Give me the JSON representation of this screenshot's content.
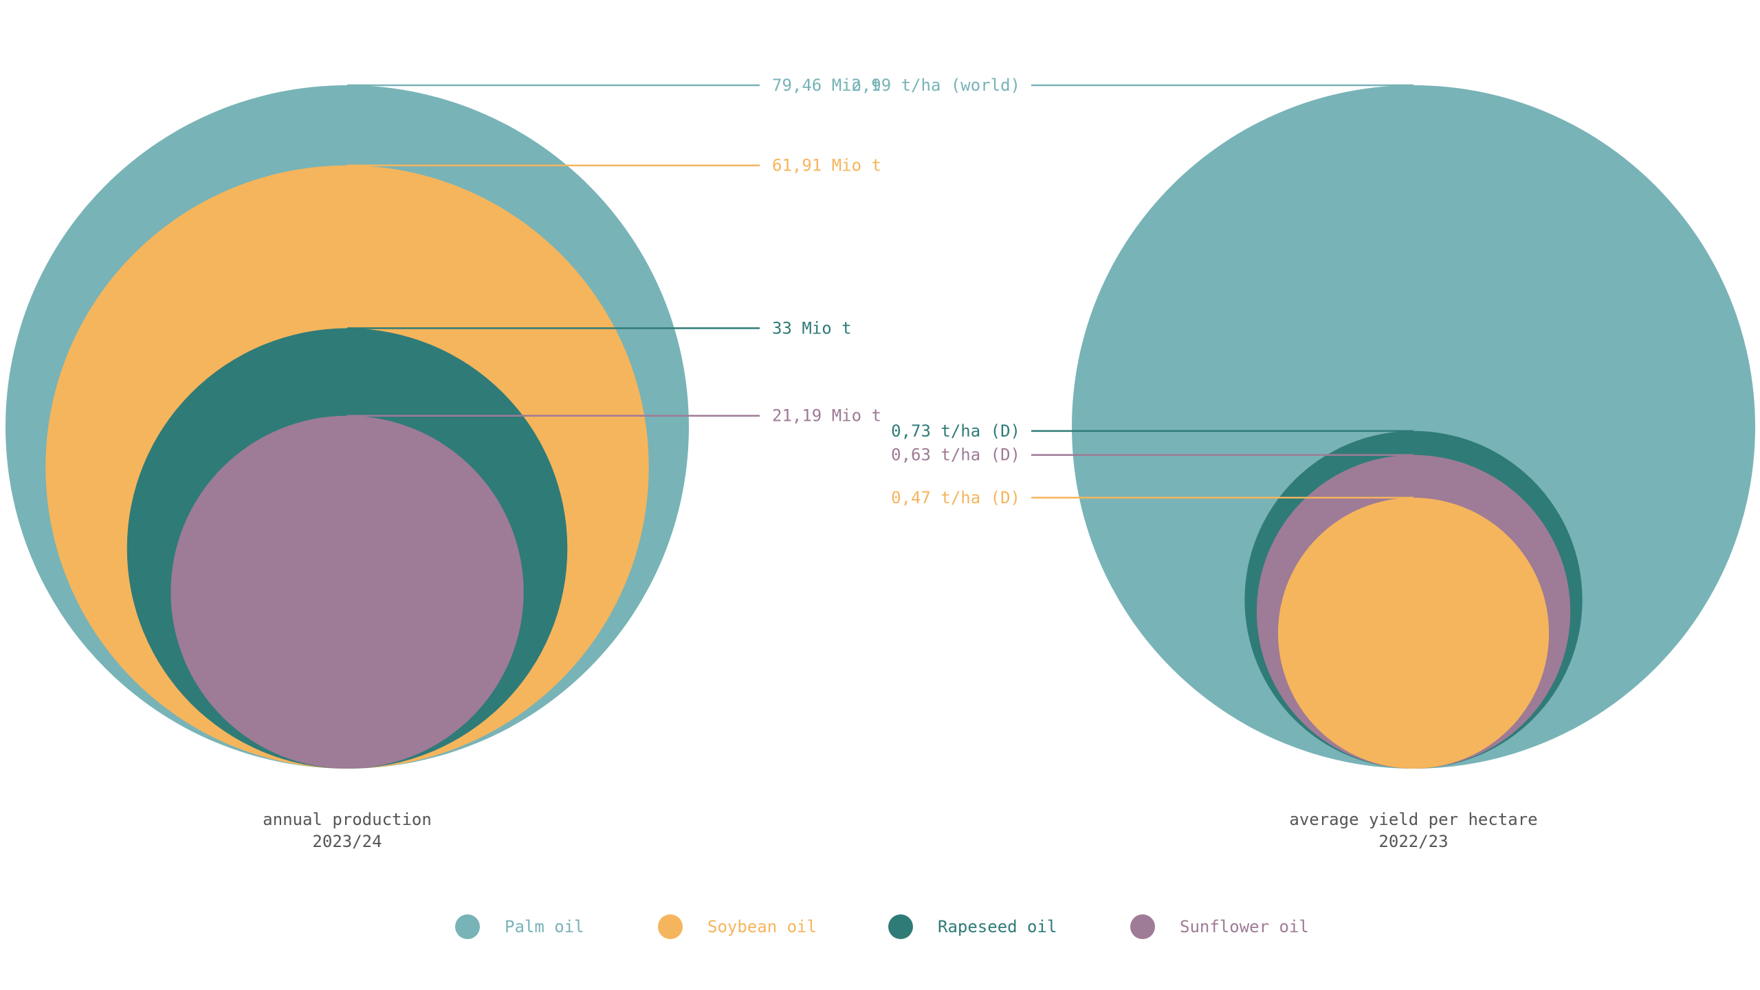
{
  "chart_data": [
    {
      "type": "bubble",
      "caption_line1": "annual production",
      "caption_line2": "2023/24",
      "unit": "Mio t",
      "series": [
        {
          "name": "Palm oil",
          "value": 79.46,
          "label": "79,46 Mio t",
          "color": "#78b3b7"
        },
        {
          "name": "Soybean oil",
          "value": 61.91,
          "label": "61,91 Mio t",
          "color": "#f5b55c"
        },
        {
          "name": "Rapeseed oil",
          "value": 33,
          "label": "33 Mio t",
          "color": "#2f7b78"
        },
        {
          "name": "Sunflower oil",
          "value": 21.19,
          "label": "21,19 Mio t",
          "color": "#9e7b96"
        }
      ]
    },
    {
      "type": "bubble",
      "caption_line1": "average yield per hectare",
      "caption_line2": "2022/23",
      "unit": "t/ha",
      "series": [
        {
          "name": "Palm oil",
          "value": 2.99,
          "label": "2,99 t/ha (world)",
          "color": "#78b3b7"
        },
        {
          "name": "Rapeseed oil",
          "value": 0.73,
          "label": "0,73 t/ha (D)",
          "color": "#2f7b78"
        },
        {
          "name": "Sunflower oil",
          "value": 0.63,
          "label": "0,63 t/ha (D)",
          "color": "#9e7b96"
        },
        {
          "name": "Soybean oil",
          "value": 0.47,
          "label": "0,47 t/ha (D)",
          "color": "#f5b55c"
        }
      ]
    }
  ],
  "legend": [
    {
      "label": "Palm oil",
      "color": "#78b3b7"
    },
    {
      "label": "Soybean oil",
      "color": "#f5b55c"
    },
    {
      "label": "Rapeseed oil",
      "color": "#2f7b78"
    },
    {
      "label": "Sunflower oil",
      "color": "#9e7b96"
    }
  ]
}
